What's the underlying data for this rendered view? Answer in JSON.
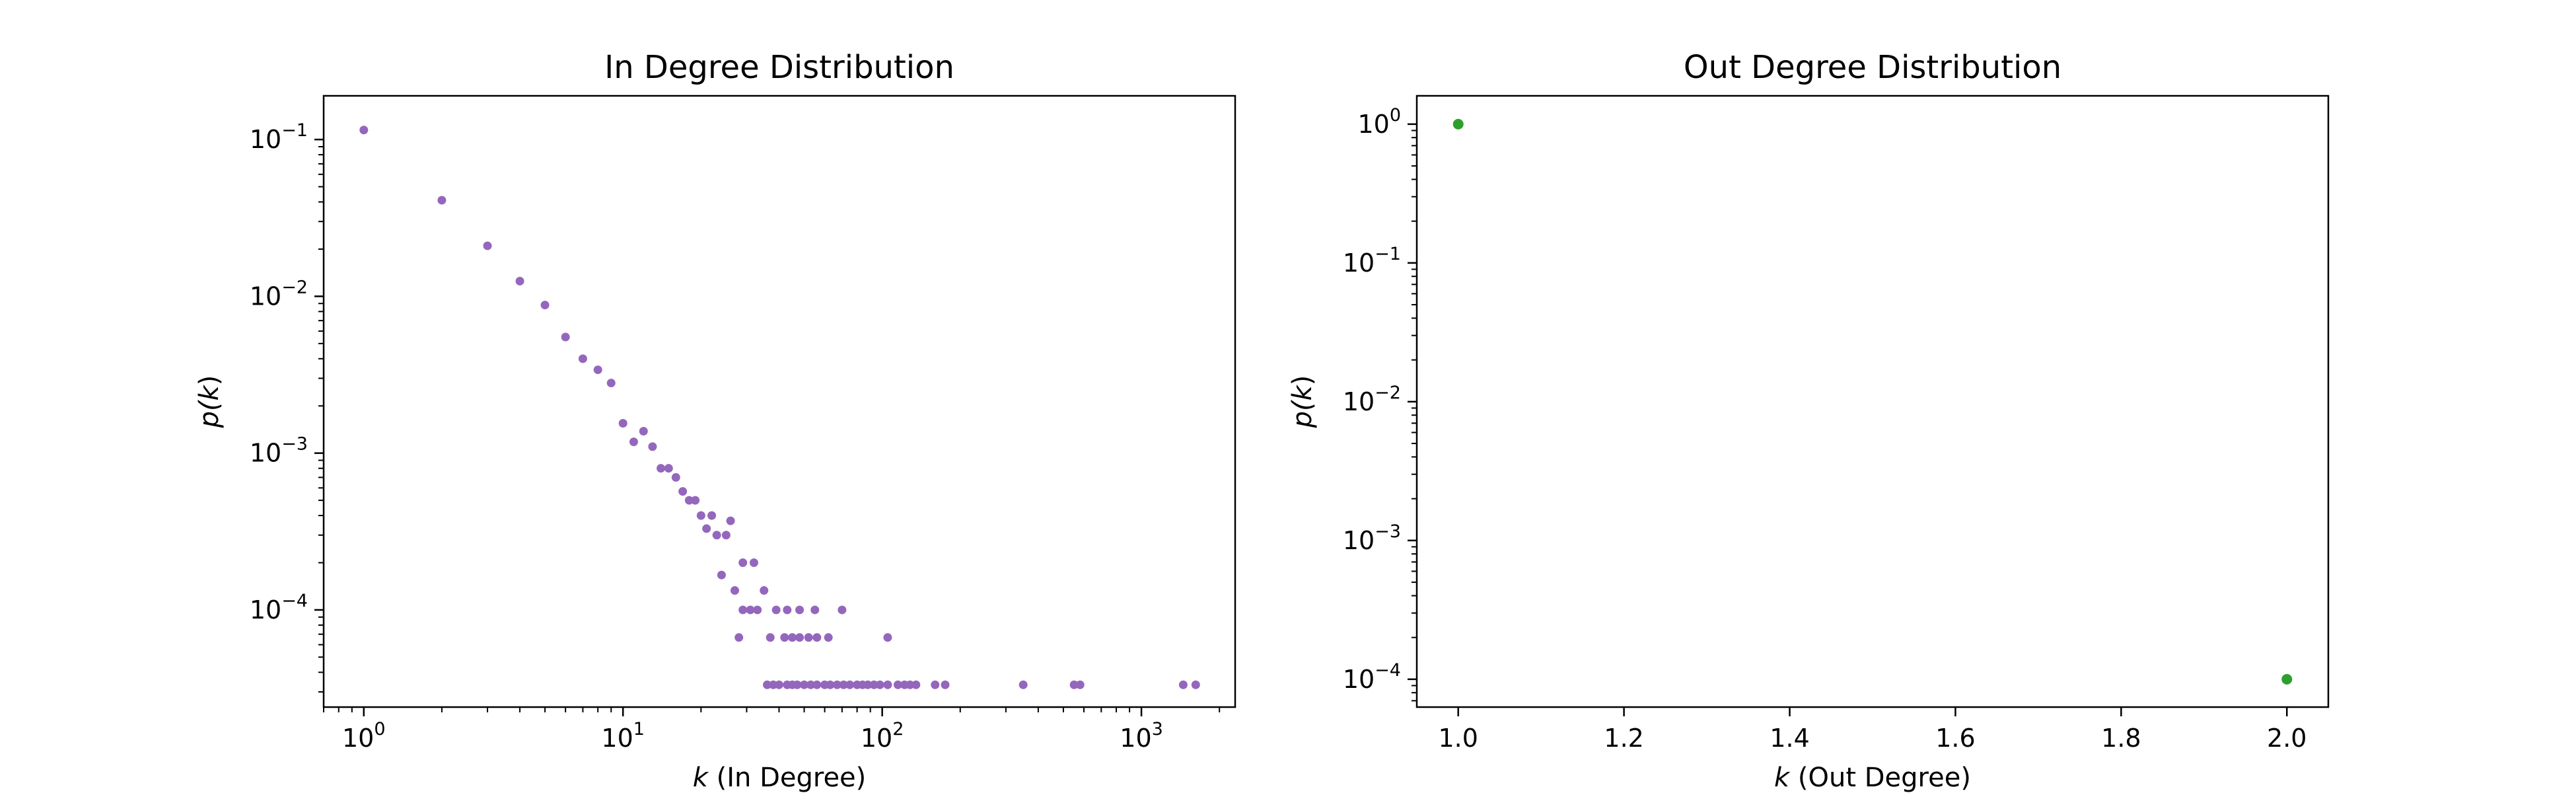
{
  "chart_data": [
    {
      "type": "scatter",
      "title": "In Degree Distribution",
      "xlabel": {
        "var": "k",
        "text": " (In Degree)"
      },
      "ylabel": {
        "fn": "p(",
        "var": "k",
        "close": ")"
      },
      "xscale": "log",
      "yscale": "log",
      "xlim": [
        0.7,
        2300
      ],
      "ylim": [
        2.4e-05,
        0.19
      ],
      "x_ticks": [
        {
          "base": "10",
          "exp": "0",
          "value": 1
        },
        {
          "base": "10",
          "exp": "1",
          "value": 10
        },
        {
          "base": "10",
          "exp": "2",
          "value": 100
        },
        {
          "base": "10",
          "exp": "3",
          "value": 1000
        }
      ],
      "y_ticks": [
        {
          "base": "10",
          "exp": "−1",
          "value": 0.1
        },
        {
          "base": "10",
          "exp": "−2",
          "value": 0.01
        },
        {
          "base": "10",
          "exp": "−3",
          "value": 0.001
        },
        {
          "base": "10",
          "exp": "−4",
          "value": 0.0001
        }
      ],
      "marker_color": "#9467bd",
      "grid": false,
      "points": [
        [
          1,
          0.115
        ],
        [
          2,
          0.041
        ],
        [
          3,
          0.021
        ],
        [
          4,
          0.0125
        ],
        [
          5,
          0.0088
        ],
        [
          6,
          0.0055
        ],
        [
          7,
          0.004
        ],
        [
          8,
          0.0034
        ],
        [
          9,
          0.0028
        ],
        [
          10,
          0.00155
        ],
        [
          11,
          0.00118
        ],
        [
          12,
          0.00138
        ],
        [
          13,
          0.0011
        ],
        [
          14,
          0.0008
        ],
        [
          15,
          0.0008
        ],
        [
          16,
          0.0007
        ],
        [
          17,
          0.00057
        ],
        [
          18,
          0.0005
        ],
        [
          19,
          0.0005
        ],
        [
          20,
          0.0004
        ],
        [
          21,
          0.00033
        ],
        [
          22,
          0.0004
        ],
        [
          23,
          0.0003
        ],
        [
          25,
          0.0003
        ],
        [
          26,
          0.00037
        ],
        [
          24,
          0.000167
        ],
        [
          27,
          0.000133
        ],
        [
          29,
          0.0002
        ],
        [
          32,
          0.0002
        ],
        [
          35,
          0.000133
        ],
        [
          28,
          6.67e-05
        ],
        [
          29,
          0.0001
        ],
        [
          31,
          0.0001
        ],
        [
          33,
          0.0001
        ],
        [
          37,
          6.67e-05
        ],
        [
          39,
          0.0001
        ],
        [
          43,
          0.0001
        ],
        [
          48,
          0.0001
        ],
        [
          55,
          0.0001
        ],
        [
          70,
          0.0001
        ],
        [
          42,
          6.67e-05
        ],
        [
          45,
          6.67e-05
        ],
        [
          48,
          6.67e-05
        ],
        [
          52,
          6.67e-05
        ],
        [
          56,
          6.67e-05
        ],
        [
          62,
          6.67e-05
        ],
        [
          105,
          6.67e-05
        ],
        [
          36,
          3.33e-05
        ],
        [
          38,
          3.33e-05
        ],
        [
          40,
          3.33e-05
        ],
        [
          43,
          3.33e-05
        ],
        [
          45,
          3.33e-05
        ],
        [
          47,
          3.33e-05
        ],
        [
          50,
          3.33e-05
        ],
        [
          53,
          3.33e-05
        ],
        [
          56,
          3.33e-05
        ],
        [
          60,
          3.33e-05
        ],
        [
          63,
          3.33e-05
        ],
        [
          67,
          3.33e-05
        ],
        [
          71,
          3.33e-05
        ],
        [
          75,
          3.33e-05
        ],
        [
          80,
          3.33e-05
        ],
        [
          84,
          3.33e-05
        ],
        [
          88,
          3.33e-05
        ],
        [
          93,
          3.33e-05
        ],
        [
          98,
          3.33e-05
        ],
        [
          105,
          3.33e-05
        ],
        [
          115,
          3.33e-05
        ],
        [
          122,
          3.33e-05
        ],
        [
          128,
          3.33e-05
        ],
        [
          135,
          3.33e-05
        ],
        [
          160,
          3.33e-05
        ],
        [
          175,
          3.33e-05
        ],
        [
          350,
          3.33e-05
        ],
        [
          550,
          3.33e-05
        ],
        [
          580,
          3.33e-05
        ],
        [
          1450,
          3.33e-05
        ],
        [
          1620,
          3.33e-05
        ]
      ]
    },
    {
      "type": "scatter",
      "title": "Out Degree Distribution",
      "xlabel": {
        "var": "k",
        "text": " (Out Degree)"
      },
      "ylabel": {
        "fn": "p(",
        "var": "k",
        "close": ")"
      },
      "xscale": "linear",
      "yscale": "log",
      "xlim": [
        0.95,
        2.05
      ],
      "ylim": [
        6.3e-05,
        1.6
      ],
      "x_ticks": [
        {
          "label": "1.0",
          "value": 1.0
        },
        {
          "label": "1.2",
          "value": 1.2
        },
        {
          "label": "1.4",
          "value": 1.4
        },
        {
          "label": "1.6",
          "value": 1.6
        },
        {
          "label": "1.8",
          "value": 1.8
        },
        {
          "label": "2.0",
          "value": 2.0
        }
      ],
      "y_ticks": [
        {
          "base": "10",
          "exp": "0",
          "value": 1
        },
        {
          "base": "10",
          "exp": "−1",
          "value": 0.1
        },
        {
          "base": "10",
          "exp": "−2",
          "value": 0.01
        },
        {
          "base": "10",
          "exp": "−3",
          "value": 0.001
        },
        {
          "base": "10",
          "exp": "−4",
          "value": 0.0001
        }
      ],
      "marker_color": "#2ca02c",
      "grid": false,
      "points": [
        [
          1.0,
          1.0
        ],
        [
          2.0,
          0.0001
        ]
      ]
    }
  ]
}
